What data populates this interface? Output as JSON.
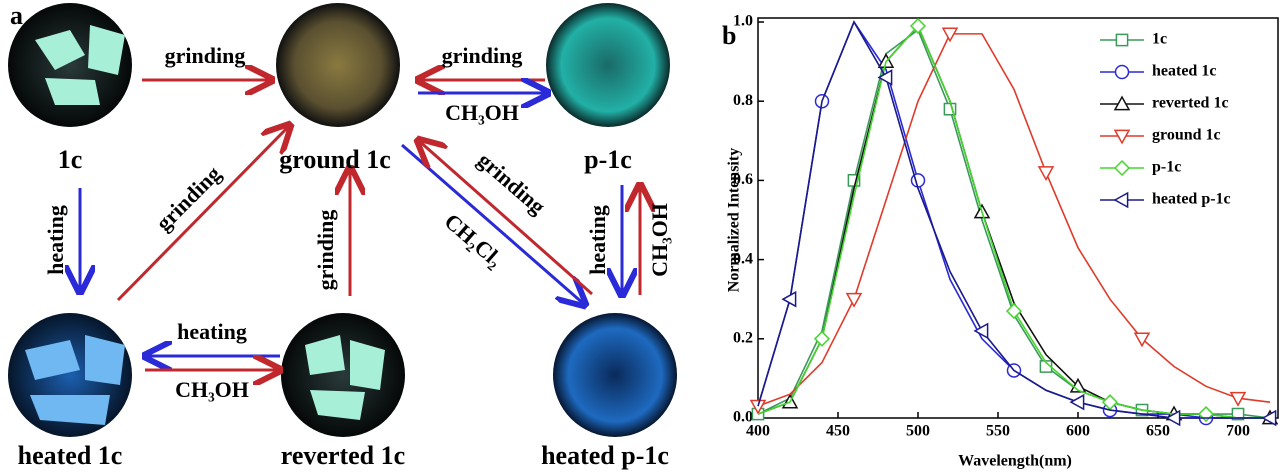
{
  "panel_a": {
    "letter": "a",
    "photos": [
      {
        "label": "1c"
      },
      {
        "label": "ground 1c"
      },
      {
        "label": "p-1c"
      },
      {
        "label": "heated 1c"
      },
      {
        "label": "reverted 1c"
      },
      {
        "label": "heated p-1c"
      }
    ],
    "arrows": [
      {
        "label": "grinding"
      },
      {
        "label": "grinding"
      },
      {
        "label": "CH₃OH"
      },
      {
        "label": "heating"
      },
      {
        "label": "grinding"
      },
      {
        "label": "grinding"
      },
      {
        "label": "heating"
      },
      {
        "label": "CH₃OH"
      },
      {
        "label": "CH₂Cl₂"
      },
      {
        "label": "grinding"
      },
      {
        "label": "heating"
      },
      {
        "label": "CH₃OH"
      }
    ]
  },
  "chart_data": {
    "type": "line",
    "letter": "b",
    "x_label": "Wavelength(nm)",
    "y_label": "Normalized Intensity",
    "x": [
      400,
      420,
      440,
      460,
      480,
      500,
      520,
      540,
      560,
      580,
      600,
      620,
      640,
      660,
      680,
      700,
      720
    ],
    "xlim": [
      400,
      720
    ],
    "xticks": [
      400,
      450,
      500,
      550,
      600,
      650,
      700
    ],
    "ylim": [
      0,
      1
    ],
    "yticks": [
      {
        "value": 0,
        "label": "0.0"
      },
      0.2,
      0.4,
      0.6,
      0.8,
      {
        "value": 1,
        "label": "1.0"
      }
    ],
    "legend": "upper right",
    "series": [
      {
        "name": "1c",
        "color": "#3a9a5a",
        "marker": "square",
        "values": [
          0.01,
          0.05,
          0.22,
          0.6,
          0.92,
          0.98,
          0.78,
          0.5,
          0.26,
          0.13,
          0.07,
          0.04,
          0.02,
          0.01,
          0.01,
          0.01,
          0
        ]
      },
      {
        "name": "heated 1c",
        "color": "#2a2ad8",
        "marker": "circle",
        "values": [
          0.03,
          0.3,
          0.8,
          1.0,
          0.88,
          0.6,
          0.35,
          0.2,
          0.12,
          0.07,
          0.04,
          0.02,
          0.01,
          0.01,
          0,
          0,
          0
        ]
      },
      {
        "name": "reverted 1c",
        "color": "#111111",
        "marker": "triangle-up",
        "values": [
          0.01,
          0.04,
          0.2,
          0.58,
          0.9,
          0.99,
          0.8,
          0.52,
          0.29,
          0.16,
          0.08,
          0.04,
          0.02,
          0.01,
          0.01,
          0,
          0
        ]
      },
      {
        "name": "ground 1c",
        "color": "#e03a2a",
        "marker": "triangle-down",
        "values": [
          0.03,
          0.06,
          0.14,
          0.3,
          0.55,
          0.8,
          0.97,
          0.97,
          0.83,
          0.62,
          0.43,
          0.3,
          0.2,
          0.13,
          0.08,
          0.05,
          0.04
        ]
      },
      {
        "name": "p-1c",
        "color": "#44d62c",
        "marker": "diamond",
        "values": [
          0.01,
          0.04,
          0.2,
          0.56,
          0.9,
          0.99,
          0.8,
          0.52,
          0.27,
          0.14,
          0.07,
          0.04,
          0.02,
          0.01,
          0.01,
          0,
          0
        ]
      },
      {
        "name": "heated p-1c",
        "color": "#1a1a8a",
        "marker": "triangle-left",
        "values": [
          0.03,
          0.3,
          0.8,
          1.0,
          0.86,
          0.58,
          0.37,
          0.22,
          0.12,
          0.07,
          0.04,
          0.02,
          0.01,
          0,
          0,
          0,
          0
        ]
      }
    ]
  }
}
